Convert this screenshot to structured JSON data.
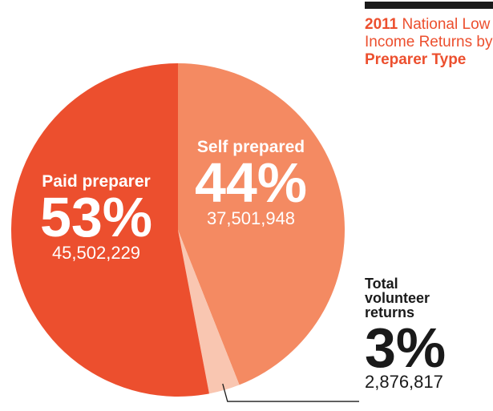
{
  "chart_data": {
    "type": "pie",
    "title_parts": [
      "2011",
      " National Low Income Returns by ",
      "Preparer Type"
    ],
    "slices": [
      {
        "name": "Self prepared",
        "percent": 44,
        "percent_label": "44%",
        "count": 37501948,
        "count_label": "37,501,948",
        "color": "#f48a62"
      },
      {
        "name": "Total volunteer returns",
        "percent": 3,
        "percent_label": "3%",
        "count": 2876817,
        "count_label": "2,876,817",
        "color": "#f9c6b1"
      },
      {
        "name": "Paid preparer",
        "percent": 53,
        "percent_label": "53%",
        "count": 45502229,
        "count_label": "45,502,229",
        "color": "#ec4f2e"
      }
    ]
  }
}
